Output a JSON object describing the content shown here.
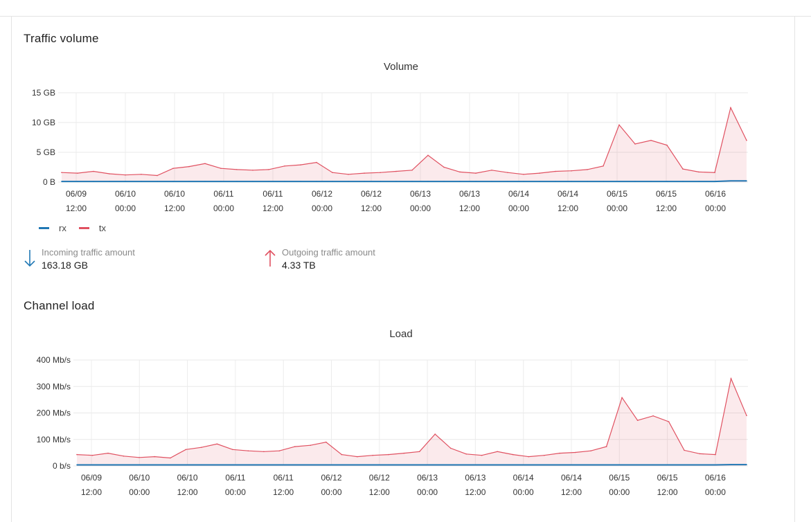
{
  "sections": {
    "traffic_title": "Traffic volume",
    "load_title": "Channel load"
  },
  "legend": [
    {
      "name": "rx",
      "color": "#1f77b4"
    },
    {
      "name": "tx",
      "color": "#e05060"
    }
  ],
  "stats": {
    "incoming": {
      "label": "Incoming traffic amount",
      "value": "163.18 GB",
      "icon": "arrow-down-icon",
      "color": "#1f77b4"
    },
    "outgoing": {
      "label": "Outgoing traffic amount",
      "value": "4.33 TB",
      "icon": "arrow-up-icon",
      "color": "#e05060"
    }
  },
  "chart_data": [
    {
      "type": "area",
      "title": "Volume",
      "y_ticks": [
        "0 B",
        "5 GB",
        "10 GB",
        "15 GB"
      ],
      "ylim": [
        0,
        15
      ],
      "y_unit": "GB",
      "x_tick_labels": [
        [
          "06/09",
          "12:00"
        ],
        [
          "06/10",
          "00:00"
        ],
        [
          "06/10",
          "12:00"
        ],
        [
          "06/11",
          "00:00"
        ],
        [
          "06/11",
          "12:00"
        ],
        [
          "06/12",
          "00:00"
        ],
        [
          "06/12",
          "12:00"
        ],
        [
          "06/13",
          "00:00"
        ],
        [
          "06/13",
          "12:00"
        ],
        [
          "06/14",
          "00:00"
        ],
        [
          "06/14",
          "12:00"
        ],
        [
          "06/15",
          "00:00"
        ],
        [
          "06/15",
          "12:00"
        ],
        [
          "06/16",
          "00:00"
        ]
      ],
      "grid": true,
      "legend_position": "bottom-left",
      "x": [
        "06/09 04:00",
        "06/09 08:00",
        "06/09 12:00",
        "06/09 16:00",
        "06/09 20:00",
        "06/10 00:00",
        "06/10 04:00",
        "06/10 08:00",
        "06/10 12:00",
        "06/10 16:00",
        "06/10 20:00",
        "06/11 00:00",
        "06/11 04:00",
        "06/11 08:00",
        "06/11 12:00",
        "06/11 16:00",
        "06/11 20:00",
        "06/12 00:00",
        "06/12 04:00",
        "06/12 08:00",
        "06/12 12:00",
        "06/12 16:00",
        "06/12 20:00",
        "06/13 00:00",
        "06/13 04:00",
        "06/13 08:00",
        "06/13 12:00",
        "06/13 16:00",
        "06/13 20:00",
        "06/14 00:00",
        "06/14 04:00",
        "06/14 08:00",
        "06/14 12:00",
        "06/14 16:00",
        "06/14 20:00",
        "06/15 00:00",
        "06/15 04:00",
        "06/15 08:00",
        "06/15 12:00",
        "06/15 16:00",
        "06/15 20:00",
        "06/16 00:00",
        "06/16 04:00",
        "06/16 08:00"
      ],
      "series": [
        {
          "name": "rx",
          "color": "#1f77b4",
          "values": [
            0.1,
            0.1,
            0.1,
            0.1,
            0.1,
            0.1,
            0.1,
            0.1,
            0.1,
            0.1,
            0.1,
            0.1,
            0.1,
            0.1,
            0.1,
            0.1,
            0.1,
            0.1,
            0.1,
            0.1,
            0.1,
            0.1,
            0.1,
            0.1,
            0.1,
            0.1,
            0.1,
            0.1,
            0.1,
            0.1,
            0.1,
            0.1,
            0.1,
            0.1,
            0.1,
            0.1,
            0.1,
            0.1,
            0.1,
            0.1,
            0.1,
            0.1,
            0.2,
            0.2
          ]
        },
        {
          "name": "tx",
          "color": "#e05060",
          "values": [
            1.6,
            1.5,
            1.8,
            1.4,
            1.2,
            1.3,
            1.1,
            2.3,
            2.6,
            3.1,
            2.3,
            2.1,
            2.0,
            2.1,
            2.7,
            2.9,
            3.3,
            1.6,
            1.3,
            1.5,
            1.6,
            1.8,
            2.0,
            4.5,
            2.5,
            1.7,
            1.5,
            2.0,
            1.6,
            1.3,
            1.5,
            1.8,
            1.9,
            2.1,
            2.7,
            9.6,
            6.4,
            7.0,
            6.2,
            2.2,
            1.7,
            1.6,
            12.5,
            7.0
          ]
        }
      ]
    },
    {
      "type": "area",
      "title": "Load",
      "y_ticks": [
        "0 b/s",
        "100 Mb/s",
        "200 Mb/s",
        "300 Mb/s",
        "400 Mb/s"
      ],
      "ylim": [
        0,
        400
      ],
      "y_unit": "Mb/s",
      "x_tick_labels": [
        [
          "06/09",
          "12:00"
        ],
        [
          "06/10",
          "00:00"
        ],
        [
          "06/10",
          "12:00"
        ],
        [
          "06/11",
          "00:00"
        ],
        [
          "06/11",
          "12:00"
        ],
        [
          "06/12",
          "00:00"
        ],
        [
          "06/12",
          "12:00"
        ],
        [
          "06/13",
          "00:00"
        ],
        [
          "06/13",
          "12:00"
        ],
        [
          "06/14",
          "00:00"
        ],
        [
          "06/14",
          "12:00"
        ],
        [
          "06/15",
          "00:00"
        ],
        [
          "06/15",
          "12:00"
        ],
        [
          "06/16",
          "00:00"
        ]
      ],
      "grid": true,
      "x": [
        "06/09 04:00",
        "06/09 08:00",
        "06/09 12:00",
        "06/09 16:00",
        "06/09 20:00",
        "06/10 00:00",
        "06/10 04:00",
        "06/10 08:00",
        "06/10 12:00",
        "06/10 16:00",
        "06/10 20:00",
        "06/11 00:00",
        "06/11 04:00",
        "06/11 08:00",
        "06/11 12:00",
        "06/11 16:00",
        "06/11 20:00",
        "06/12 00:00",
        "06/12 04:00",
        "06/12 08:00",
        "06/12 12:00",
        "06/12 16:00",
        "06/12 20:00",
        "06/13 00:00",
        "06/13 04:00",
        "06/13 08:00",
        "06/13 12:00",
        "06/13 16:00",
        "06/13 20:00",
        "06/14 00:00",
        "06/14 04:00",
        "06/14 08:00",
        "06/14 12:00",
        "06/14 16:00",
        "06/14 20:00",
        "06/15 00:00",
        "06/15 04:00",
        "06/15 08:00",
        "06/15 12:00",
        "06/15 16:00",
        "06/15 20:00",
        "06/16 00:00",
        "06/16 04:00",
        "06/16 08:00"
      ],
      "series": [
        {
          "name": "rx",
          "color": "#1f77b4",
          "values": [
            4,
            4,
            4,
            4,
            4,
            4,
            4,
            4,
            4,
            4,
            4,
            4,
            4,
            4,
            4,
            4,
            4,
            4,
            4,
            4,
            4,
            4,
            4,
            4,
            4,
            4,
            4,
            4,
            4,
            4,
            4,
            4,
            4,
            4,
            4,
            4,
            4,
            4,
            4,
            4,
            4,
            4,
            5,
            5
          ]
        },
        {
          "name": "tx",
          "color": "#e05060",
          "values": [
            43,
            40,
            48,
            37,
            32,
            35,
            30,
            62,
            70,
            83,
            62,
            57,
            54,
            57,
            73,
            78,
            90,
            43,
            35,
            40,
            43,
            48,
            54,
            120,
            67,
            45,
            40,
            54,
            43,
            35,
            40,
            48,
            51,
            57,
            73,
            258,
            172,
            189,
            167,
            59,
            46,
            43,
            330,
            190
          ]
        }
      ]
    }
  ]
}
